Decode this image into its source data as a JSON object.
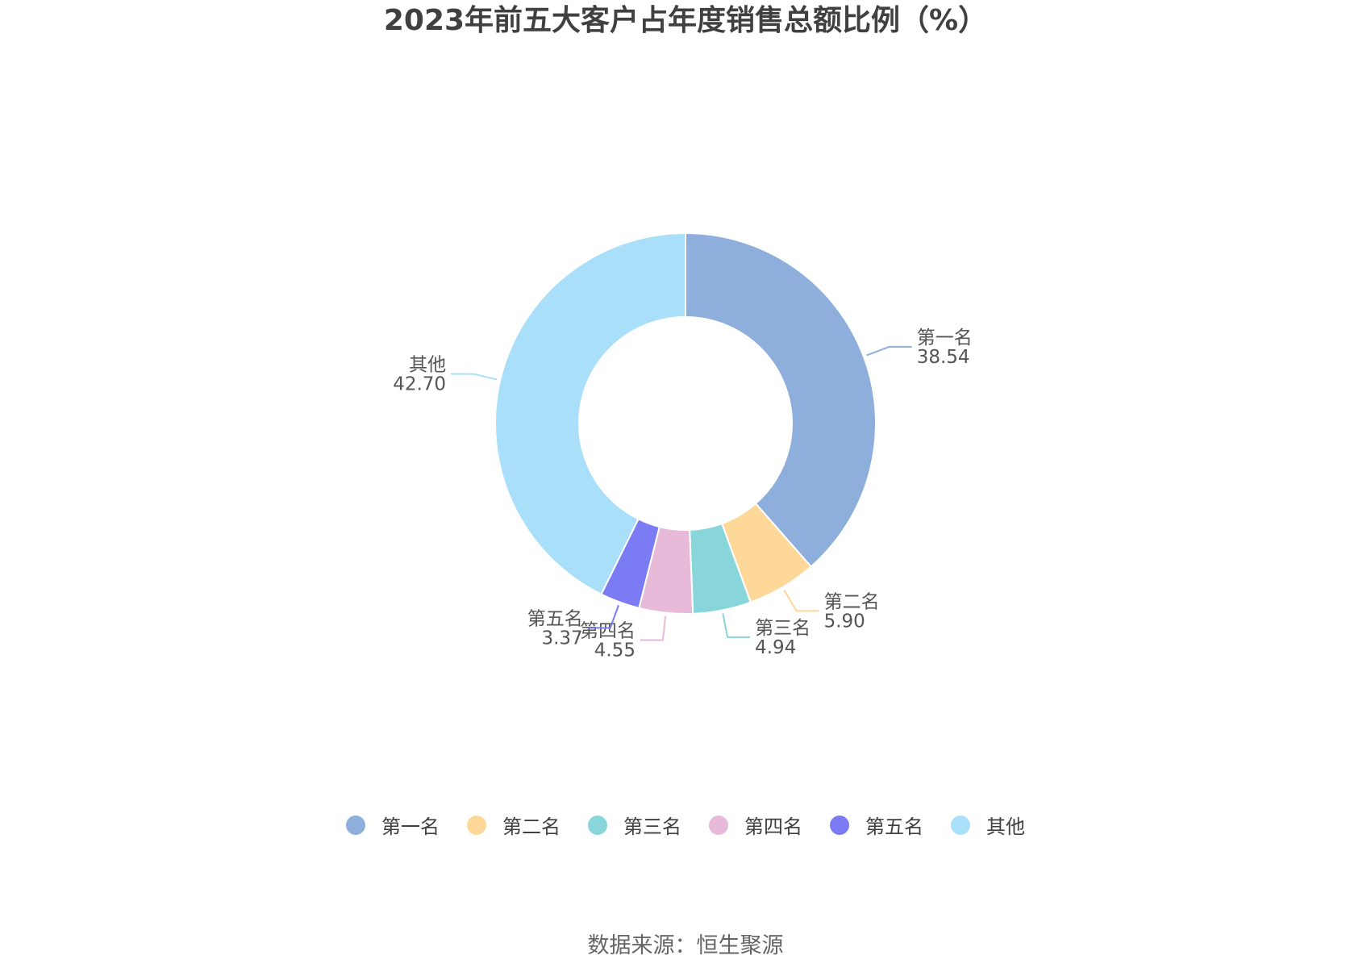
{
  "chart_data": {
    "type": "pie",
    "donut": true,
    "title": "2023年前五大客户占年度销售总额比例（%）",
    "categories": [
      "第一名",
      "第二名",
      "第三名",
      "第四名",
      "第五名",
      "其他"
    ],
    "values": [
      38.54,
      5.9,
      4.94,
      4.55,
      3.37,
      42.7
    ],
    "colors": [
      "#8eaedb",
      "#fed898",
      "#88d6d9",
      "#e8bada",
      "#7b7cf3",
      "#a9dff9"
    ],
    "legend_position": "bottom",
    "source": "数据来源：恒生聚源"
  }
}
